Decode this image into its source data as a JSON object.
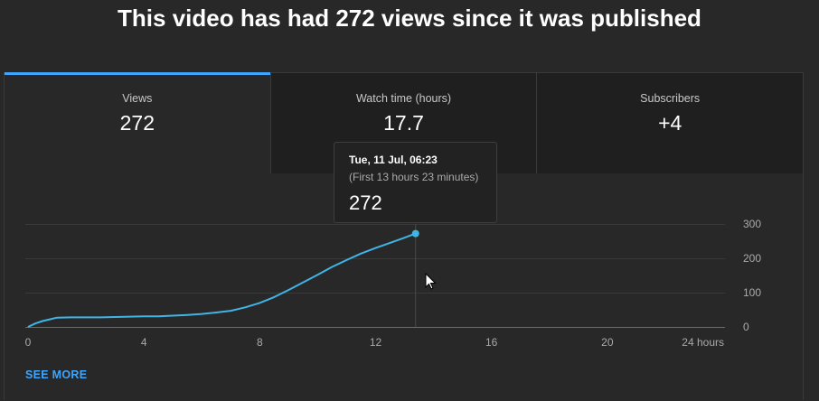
{
  "page": {
    "headline": "This video has had 272 views since it was published"
  },
  "tabs": [
    {
      "label": "Views",
      "value": "272",
      "active": true
    },
    {
      "label": "Watch time (hours)",
      "value": "17.7",
      "active": false
    },
    {
      "label": "Subscribers",
      "value": "+4",
      "active": false
    }
  ],
  "tooltip": {
    "date": "Tue, 11 Jul, 06:23",
    "subtitle": "(First 13 hours 23 minutes)",
    "value": "272"
  },
  "see_more_label": "SEE MORE",
  "colors": {
    "accent": "#3ea6ff",
    "line": "#41b4e6",
    "background": "#282828",
    "card": "#1f1f1f"
  },
  "chart_data": {
    "type": "line",
    "x_ticks": [
      "0",
      "4",
      "8",
      "12",
      "16",
      "20",
      "24 hours"
    ],
    "x_tick_values": [
      0,
      4,
      8,
      12,
      16,
      20,
      24
    ],
    "y_ticks": [
      "0",
      "100",
      "200",
      "300"
    ],
    "y_tick_values": [
      0,
      100,
      200,
      300
    ],
    "xlim": [
      0,
      24
    ],
    "ylim": [
      0,
      300
    ],
    "grid": true,
    "legend": "none",
    "hover_x": 13.38,
    "series": [
      {
        "x": [
          0,
          0.25,
          0.5,
          0.75,
          1,
          1.5,
          2,
          2.5,
          3,
          3.5,
          4,
          4.5,
          5,
          5.5,
          6,
          6.5,
          7,
          7.5,
          8,
          8.5,
          9,
          9.5,
          10,
          10.5,
          11,
          11.5,
          12,
          12.5,
          13,
          13.38
        ],
        "y": [
          0,
          10,
          17,
          22,
          27,
          28,
          28,
          28,
          29,
          30,
          31,
          31,
          33,
          35,
          38,
          42,
          47,
          57,
          70,
          87,
          108,
          130,
          152,
          175,
          195,
          214,
          230,
          245,
          260,
          272
        ]
      }
    ]
  }
}
